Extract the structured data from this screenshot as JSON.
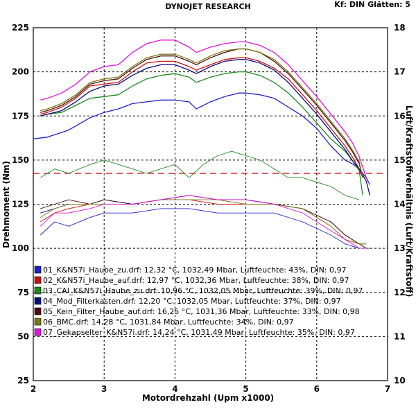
{
  "chart_data": {
    "type": "line",
    "title": "DYNOJET RESEARCH",
    "header_right": "Kf: DIN  Glätten: 5",
    "xlabel": "Motordrehzahl (Upm x1000)",
    "ylabel_left": "Drehmoment (Nm)",
    "ylabel_right": "Luft/Kraftstoffverhältnis (Luft/Kraftstoff)",
    "xlim": [
      2,
      7
    ],
    "ylim_left": [
      25,
      225
    ],
    "ylim_right": [
      10,
      18
    ],
    "x_ticks": [
      "2",
      "3",
      "4",
      "5",
      "6",
      "7"
    ],
    "y_ticks_left": [
      "25",
      "50",
      "75",
      "100",
      "125",
      "150",
      "175",
      "200",
      "225"
    ],
    "y_ticks_right": [
      "10",
      "11",
      "12",
      "13",
      "14",
      "15",
      "16",
      "17",
      "18"
    ],
    "reference_line": {
      "axis": "right",
      "value": 14.7,
      "color": "#cc0000",
      "style": "dashed"
    },
    "series": [
      {
        "name": "01_K&N57i_Haube_zu.drf: 12,32 °C, 1032,49 Mbar, Luftfeuchte: 43%, DIN: 0,97",
        "color": "#1f1fc8",
        "torque": {
          "x": [
            2.0,
            2.2,
            2.5,
            2.8,
            3.0,
            3.2,
            3.4,
            3.6,
            3.8,
            4.0,
            4.2,
            4.3,
            4.5,
            4.7,
            4.9,
            5.0,
            5.2,
            5.4,
            5.6,
            5.8,
            6.0,
            6.2,
            6.4,
            6.5,
            6.6,
            6.7,
            6.75
          ],
          "y": [
            162,
            163,
            167,
            174,
            177,
            179,
            182,
            183,
            184,
            184,
            183,
            179,
            183,
            186,
            188,
            188,
            187,
            185,
            180,
            175,
            168,
            158,
            150,
            148,
            145,
            140,
            136
          ]
        },
        "afr": {
          "x": [
            2.1,
            2.3,
            2.5,
            2.8,
            3.0,
            3.4,
            3.8,
            4.2,
            4.6,
            5.0,
            5.4,
            5.8,
            6.2,
            6.4,
            6.6,
            6.75
          ],
          "y": [
            13.3,
            13.6,
            13.5,
            13.7,
            13.8,
            13.8,
            13.9,
            13.9,
            13.8,
            13.8,
            13.8,
            13.6,
            13.3,
            13.1,
            13.0,
            13.0
          ]
        }
      },
      {
        "name": "02_K&N57i_Haube_auf.drf: 12,97 °C, 1032,36 Mbar, Luftfeuchte: 38%, DIN: 0,97",
        "color": "#cc1010",
        "torque": {
          "x": [
            2.1,
            2.2,
            2.4,
            2.6,
            2.8,
            3.0,
            3.2,
            3.4,
            3.6,
            3.8,
            4.0,
            4.2,
            4.3,
            4.5,
            4.7,
            4.9,
            5.0,
            5.2,
            5.4,
            5.6,
            5.8,
            6.0,
            6.2,
            6.4,
            6.5,
            6.6,
            6.65
          ],
          "y": [
            176,
            177,
            180,
            185,
            192,
            193,
            194,
            200,
            205,
            206,
            206,
            203,
            201,
            204,
            207,
            208,
            208,
            206,
            202,
            196,
            187,
            178,
            168,
            158,
            152,
            145,
            140
          ]
        },
        "afr": {
          "x": [
            2.1,
            2.3,
            2.5,
            2.8,
            3.0,
            3.4,
            3.8,
            4.2,
            4.6,
            5.0,
            5.4,
            5.8,
            6.2,
            6.4,
            6.6,
            6.7
          ],
          "y": [
            13.6,
            13.8,
            13.9,
            14.0,
            14.0,
            14.0,
            14.1,
            14.1,
            14.0,
            14.0,
            14.0,
            13.9,
            13.5,
            13.2,
            13.1,
            13.1
          ]
        }
      },
      {
        "name": "03_CAI_K&N57i_Haube_zu.drf: 10,96 °C, 1032,05 Mbar, Luftfeuchte: 39%, DIN: 0,97",
        "color": "#1a8a1a",
        "torque": {
          "x": [
            2.1,
            2.2,
            2.4,
            2.6,
            2.8,
            3.0,
            3.2,
            3.4,
            3.6,
            3.8,
            4.0,
            4.2,
            4.3,
            4.5,
            4.7,
            4.9,
            5.0,
            5.2,
            5.4,
            5.6,
            5.8,
            6.0,
            6.2,
            6.4,
            6.5,
            6.6,
            6.65
          ],
          "y": [
            175,
            176,
            177,
            181,
            185,
            186,
            187,
            192,
            196,
            198,
            199,
            197,
            194,
            197,
            199,
            200,
            200,
            198,
            194,
            188,
            180,
            171,
            162,
            155,
            150,
            144,
            130
          ]
        },
        "afr": {
          "x": [
            2.1,
            2.3,
            2.5,
            2.8,
            3.0,
            3.2,
            3.4,
            3.6,
            3.8,
            4.0,
            4.2,
            4.4,
            4.6,
            4.8,
            5.0,
            5.2,
            5.4,
            5.6,
            5.8,
            6.0,
            6.2,
            6.4,
            6.6
          ],
          "y": [
            14.6,
            14.8,
            14.7,
            14.9,
            15.0,
            14.9,
            14.8,
            14.7,
            14.8,
            14.9,
            14.6,
            14.9,
            15.1,
            15.2,
            15.1,
            15.0,
            14.8,
            14.6,
            14.6,
            14.5,
            14.4,
            14.2,
            14.1
          ]
        }
      },
      {
        "name": "04_Mod_Filterkasten.drf: 12,20 °C, 1032,05 Mbar, Luftfeuchte: 37%, DIN: 0,97",
        "color": "#0a0a80",
        "torque": {
          "x": [
            2.1,
            2.2,
            2.4,
            2.6,
            2.8,
            3.0,
            3.2,
            3.4,
            3.6,
            3.8,
            4.0,
            4.2,
            4.3,
            4.5,
            4.7,
            4.9,
            5.0,
            5.2,
            5.4,
            5.6,
            5.8,
            6.0,
            6.2,
            6.4,
            6.5,
            6.6,
            6.7,
            6.75
          ],
          "y": [
            175,
            176,
            178,
            183,
            189,
            192,
            193,
            198,
            202,
            204,
            204,
            201,
            199,
            203,
            206,
            207,
            207,
            205,
            201,
            194,
            185,
            176,
            166,
            156,
            150,
            145,
            138,
            130
          ]
        },
        "afr": {
          "x": [
            2.1,
            2.3,
            2.5,
            2.8,
            3.0,
            3.4,
            3.8,
            4.2,
            4.6,
            5.0,
            5.4,
            5.8,
            6.2,
            6.4,
            6.6,
            6.7
          ],
          "y": [
            13.8,
            13.9,
            14.0,
            14.0,
            14.1,
            14.0,
            14.1,
            14.2,
            14.1,
            14.1,
            14.0,
            13.9,
            13.6,
            13.3,
            13.1,
            13.0
          ]
        }
      },
      {
        "name": "05_Kein_Filter_Haube_auf.drf: 16,25 °C, 1031,36 Mbar, Luftfeuchte: 33%, DIN: 0,98",
        "color": "#4a1010",
        "torque": {
          "x": [
            2.1,
            2.2,
            2.4,
            2.6,
            2.8,
            3.0,
            3.2,
            3.4,
            3.6,
            3.8,
            4.0,
            4.2,
            4.3,
            4.5,
            4.7,
            4.9,
            5.0,
            5.2,
            5.4,
            5.6,
            5.8,
            6.0,
            6.2,
            6.4,
            6.5,
            6.6,
            6.65
          ],
          "y": [
            177,
            178,
            181,
            186,
            193,
            195,
            196,
            202,
            207,
            209,
            209,
            206,
            204,
            208,
            211,
            213,
            213,
            211,
            206,
            199,
            190,
            181,
            171,
            161,
            155,
            148,
            140
          ]
        },
        "afr": {
          "x": [
            2.1,
            2.3,
            2.5,
            2.8,
            3.0,
            3.4,
            3.8,
            4.2,
            4.6,
            5.0,
            5.4,
            5.8,
            6.2,
            6.4,
            6.6,
            6.7
          ],
          "y": [
            13.9,
            14.0,
            14.1,
            14.0,
            14.1,
            14.0,
            14.1,
            14.2,
            14.1,
            14.1,
            14.0,
            13.9,
            13.6,
            13.3,
            13.1,
            13.0
          ]
        }
      },
      {
        "name": "06_BMC.drf: 14,28 °C, 1031,84 Mbar, Luftfeuchte: 34%, DIN: 0,97",
        "color": "#7a7a10",
        "torque": {
          "x": [
            2.1,
            2.2,
            2.4,
            2.6,
            2.8,
            3.0,
            3.2,
            3.4,
            3.6,
            3.8,
            4.0,
            4.2,
            4.3,
            4.5,
            4.7,
            4.9,
            5.0,
            5.2,
            5.4,
            5.6,
            5.8,
            6.0,
            6.2,
            6.4,
            6.5,
            6.6,
            6.65
          ],
          "y": [
            178,
            179,
            182,
            187,
            194,
            196,
            197,
            203,
            208,
            210,
            210,
            207,
            205,
            209,
            212,
            213,
            213,
            211,
            207,
            200,
            191,
            182,
            172,
            162,
            156,
            149,
            140
          ]
        },
        "afr": {
          "x": [
            2.1,
            2.3,
            2.5,
            2.8,
            3.0,
            3.4,
            3.8,
            4.2,
            4.6,
            5.0,
            5.4,
            5.8,
            6.2,
            6.4,
            6.6,
            6.7
          ],
          "y": [
            13.7,
            13.9,
            14.0,
            14.0,
            14.0,
            14.0,
            14.1,
            14.1,
            14.1,
            14.0,
            14.0,
            13.9,
            13.5,
            13.2,
            13.1,
            13.1
          ]
        }
      },
      {
        "name": "07_Gekapselter_K&N57i.drf: 14,24 °C, 1031,49 Mbar, Luftfeuchte: 35%, DIN: 0,97",
        "color": "#e010e0",
        "torque": {
          "x": [
            2.1,
            2.2,
            2.4,
            2.6,
            2.8,
            3.0,
            3.2,
            3.4,
            3.6,
            3.8,
            4.0,
            4.2,
            4.3,
            4.5,
            4.7,
            4.9,
            5.0,
            5.2,
            5.4,
            5.6,
            5.8,
            6.0,
            6.2,
            6.4,
            6.5,
            6.6,
            6.7
          ],
          "y": [
            184,
            185,
            188,
            193,
            200,
            203,
            204,
            211,
            216,
            218,
            218,
            214,
            211,
            214,
            216,
            217,
            217,
            215,
            211,
            204,
            195,
            186,
            176,
            166,
            160,
            152,
            140
          ]
        },
        "afr": {
          "x": [
            2.1,
            2.3,
            2.5,
            2.8,
            3.0,
            3.4,
            3.8,
            4.2,
            4.6,
            5.0,
            5.4,
            5.8,
            6.2,
            6.4,
            6.6,
            6.7
          ],
          "y": [
            13.5,
            13.8,
            13.8,
            13.9,
            14.0,
            14.0,
            14.1,
            14.2,
            14.1,
            14.1,
            14.0,
            13.8,
            13.4,
            13.2,
            13.0,
            13.0
          ]
        }
      }
    ]
  }
}
